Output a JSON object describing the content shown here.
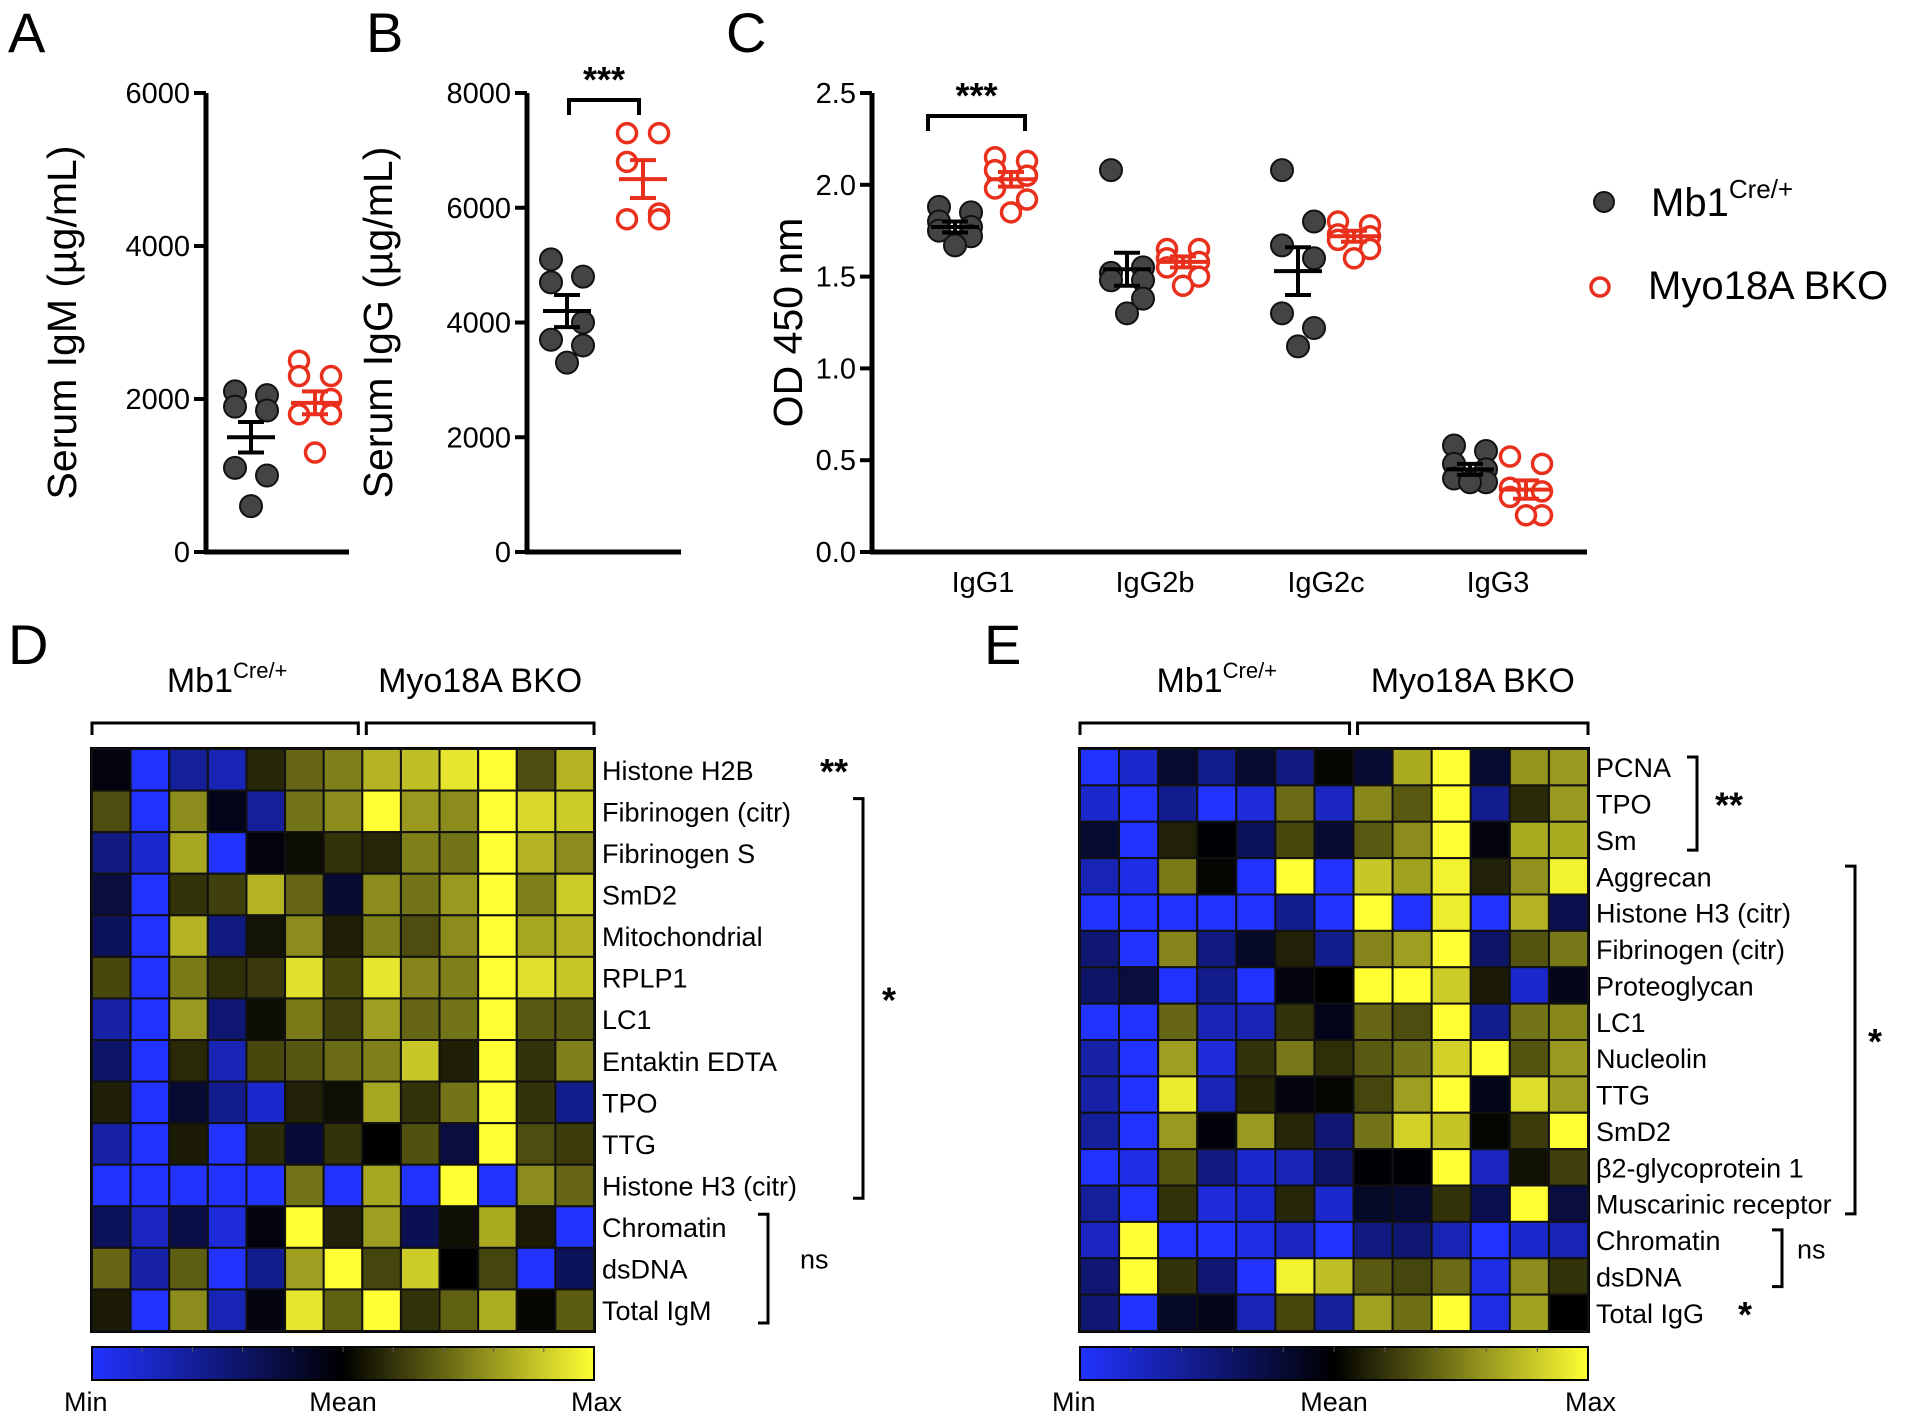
{
  "panel_letters": [
    "A",
    "B",
    "C",
    "D",
    "E"
  ],
  "colors": {
    "control": "#444444",
    "ko": "#e8301c",
    "min": "#2233ff",
    "mean": "#000000",
    "max": "#ffff33"
  },
  "legend": {
    "control": {
      "base": "Mb1",
      "sup": "Cre/+"
    },
    "ko": {
      "label": "Myo18A BKO"
    }
  },
  "chart_data": [
    {
      "id": "A",
      "type": "scatter",
      "ylabel": "Serum IgM (µg/mL)",
      "ylim": [
        0,
        6000
      ],
      "yticks": [
        "0",
        "2000",
        "4000",
        "6000"
      ],
      "groups": [
        {
          "name": "Mb1Cre/+",
          "values": [
            2100,
            2050,
            1900,
            1850,
            1100,
            1000,
            600
          ],
          "mean": 1500,
          "sem": 200
        },
        {
          "name": "Myo18A BKO",
          "values": [
            2500,
            2300,
            2300,
            2000,
            1800,
            1800,
            1300
          ],
          "mean": 1950,
          "sem": 150
        }
      ],
      "significance": ""
    },
    {
      "id": "B",
      "type": "scatter",
      "ylabel": "Serum IgG (µg/mL)",
      "ylim": [
        0,
        8000
      ],
      "yticks": [
        "0",
        "2000",
        "4000",
        "6000",
        "8000"
      ],
      "groups": [
        {
          "name": "Mb1Cre/+",
          "values": [
            5100,
            4800,
            4700,
            4000,
            3700,
            3600,
            3300
          ],
          "mean": 4200,
          "sem": 280
        },
        {
          "name": "Myo18A BKO",
          "values": [
            7300,
            7300,
            6800,
            5900,
            5800,
            5800
          ],
          "mean": 6500,
          "sem": 330
        }
      ],
      "significance": "***"
    },
    {
      "id": "C",
      "type": "scatter",
      "ylabel": "OD 450 nm",
      "ylim": [
        0,
        2.5
      ],
      "yticks": [
        "0.0",
        "0.5",
        "1.0",
        "1.5",
        "2.0",
        "2.5"
      ],
      "categories": [
        "IgG1",
        "IgG2b",
        "IgG2c",
        "IgG3"
      ],
      "series": [
        {
          "name": "Mb1Cre/+",
          "values": [
            [
              1.88,
              1.85,
              1.8,
              1.77,
              1.75,
              1.72,
              1.67
            ],
            [
              2.08,
              1.55,
              1.52,
              1.48,
              1.48,
              1.38,
              1.3
            ],
            [
              2.08,
              1.8,
              1.67,
              1.6,
              1.3,
              1.22,
              1.12
            ],
            [
              0.58,
              0.55,
              0.48,
              0.45,
              0.4,
              0.38,
              0.38
            ]
          ],
          "mean": [
            1.77,
            1.54,
            1.53,
            0.45
          ],
          "sem": [
            0.03,
            0.09,
            0.13,
            0.03
          ]
        },
        {
          "name": "Myo18A BKO",
          "values": [
            [
              2.15,
              2.13,
              2.08,
              2.05,
              1.98,
              1.92,
              1.85
            ],
            [
              1.65,
              1.65,
              1.6,
              1.58,
              1.55,
              1.5,
              1.45
            ],
            [
              1.8,
              1.78,
              1.73,
              1.72,
              1.7,
              1.65,
              1.6
            ],
            [
              0.52,
              0.48,
              0.35,
              0.33,
              0.3,
              0.2,
              0.2
            ]
          ],
          "mean": [
            2.03,
            1.58,
            1.72,
            0.34
          ],
          "sem": [
            0.04,
            0.03,
            0.03,
            0.05
          ]
        }
      ],
      "significance": "***"
    },
    {
      "id": "D",
      "type": "heatmap",
      "scale": [
        -1,
        1
      ],
      "colorbar_labels": [
        "Min",
        "Mean",
        "Max"
      ],
      "column_groups": [
        {
          "base": "Mb1",
          "sup": "Cre/+",
          "columns": 7
        },
        {
          "label": "Myo18A BKO",
          "columns": 6
        }
      ],
      "rows": [
        "Histone H2B",
        "Fibrinogen (citr)",
        "Fibrinogen S",
        "SmD2",
        "Mitochondrial",
        "RPLP1",
        "LC1",
        "Entaktin EDTA",
        "TPO",
        "TTG",
        "Histone H3 (citr)",
        "Chromatin",
        "dsDNA",
        "Total IgM"
      ],
      "values": [
        [
          -0.05,
          -1,
          -0.6,
          -0.7,
          0.15,
          0.4,
          0.5,
          0.7,
          0.75,
          0.9,
          1,
          0.3,
          0.7
        ],
        [
          0.3,
          -1,
          0.55,
          -0.1,
          -0.6,
          0.45,
          0.55,
          1,
          0.6,
          0.55,
          1,
          0.85,
          0.8
        ],
        [
          -0.5,
          -0.8,
          0.65,
          -1,
          -0.05,
          0.05,
          0.2,
          0.15,
          0.5,
          0.45,
          1,
          0.7,
          0.55
        ],
        [
          -0.25,
          -1,
          0.2,
          0.25,
          0.7,
          0.4,
          -0.2,
          0.55,
          0.45,
          0.6,
          1,
          0.5,
          0.8
        ],
        [
          -0.35,
          -1,
          0.7,
          -0.5,
          0.08,
          0.55,
          0.12,
          0.5,
          0.3,
          0.55,
          1,
          0.65,
          0.7
        ],
        [
          0.28,
          -1,
          0.48,
          0.18,
          0.22,
          0.88,
          0.28,
          0.9,
          0.52,
          0.5,
          1,
          0.88,
          0.78
        ],
        [
          -0.65,
          -1,
          0.6,
          -0.45,
          0.05,
          0.48,
          0.25,
          0.62,
          0.4,
          0.45,
          1,
          0.35,
          0.35
        ],
        [
          -0.4,
          -1,
          0.16,
          -0.7,
          0.28,
          0.34,
          0.42,
          0.5,
          0.78,
          0.12,
          1,
          0.2,
          0.5
        ],
        [
          0.12,
          -1,
          -0.2,
          -0.55,
          -0.8,
          0.13,
          0.06,
          0.65,
          0.2,
          0.45,
          1,
          0.2,
          -0.55
        ],
        [
          -0.65,
          -1,
          0.1,
          -1,
          0.17,
          -0.22,
          0.2,
          0.0,
          0.32,
          -0.25,
          1,
          0.3,
          0.24
        ],
        [
          -1,
          -1,
          -1,
          -1,
          -1,
          0.45,
          -1,
          0.65,
          -1,
          1,
          -1,
          0.55,
          0.4
        ],
        [
          -0.35,
          -0.75,
          -0.28,
          -0.85,
          -0.05,
          1,
          0.13,
          0.62,
          -0.32,
          0.06,
          0.67,
          0.1,
          -1
        ],
        [
          0.4,
          -0.65,
          0.37,
          -1,
          -0.55,
          0.62,
          1,
          0.27,
          0.8,
          0.0,
          0.27,
          -1,
          -0.35
        ],
        [
          0.1,
          -1,
          0.55,
          -0.7,
          -0.05,
          0.9,
          0.38,
          1,
          0.2,
          0.38,
          0.68,
          0.02,
          0.36
        ]
      ],
      "significance": [
        {
          "rows": [
            0,
            0
          ],
          "label": "**"
        },
        {
          "rows": [
            1,
            10
          ],
          "label": "*"
        },
        {
          "rows": [
            11,
            13
          ],
          "label": "ns"
        }
      ]
    },
    {
      "id": "E",
      "type": "heatmap",
      "scale": [
        -1,
        1
      ],
      "colorbar_labels": [
        "Min",
        "Mean",
        "Max"
      ],
      "column_groups": [
        {
          "base": "Mb1",
          "sup": "Cre/+",
          "columns": 7
        },
        {
          "label": "Myo18A BKO",
          "columns": 6
        }
      ],
      "rows": [
        "PCNA",
        "TPO",
        "Sm",
        "Aggrecan",
        "Histone H3 (citr)",
        "Fibrinogen (citr)",
        "Proteoglycan",
        "LC1",
        "Nucleolin",
        "TTG",
        "SmD2",
        "β2-glycoprotein 1",
        "Muscarinic receptor",
        "Chromatin",
        "dsDNA",
        "Total IgG"
      ],
      "values": [
        [
          -1,
          -0.8,
          -0.2,
          -0.55,
          -0.2,
          -0.5,
          0.02,
          -0.2,
          0.67,
          1,
          -0.2,
          0.58,
          0.6
        ],
        [
          -0.8,
          -1,
          -0.55,
          -1,
          -0.85,
          0.42,
          -0.75,
          0.53,
          0.35,
          1,
          -0.55,
          0.17,
          0.6
        ],
        [
          -0.2,
          -1,
          0.13,
          -0.02,
          -0.35,
          0.28,
          -0.2,
          0.35,
          0.55,
          1,
          -0.05,
          0.67,
          0.67
        ],
        [
          -0.7,
          -0.9,
          0.48,
          0.02,
          -1,
          1,
          -1,
          0.78,
          0.63,
          0.95,
          0.13,
          0.57,
          0.95
        ],
        [
          -1,
          -1,
          -1,
          -1,
          -1,
          -0.55,
          -1,
          1,
          -1,
          0.93,
          -1,
          0.7,
          -0.3
        ],
        [
          -0.45,
          -1,
          0.52,
          -0.5,
          -0.15,
          0.13,
          -0.55,
          0.52,
          0.62,
          1,
          -0.4,
          0.33,
          0.47
        ],
        [
          -0.4,
          -0.25,
          -1,
          -0.55,
          -1,
          -0.05,
          0.0,
          1,
          1,
          0.8,
          0.1,
          -0.8,
          -0.1
        ],
        [
          -1,
          -1,
          0.4,
          -0.7,
          -0.7,
          0.2,
          -0.1,
          0.4,
          0.3,
          1,
          -0.55,
          0.45,
          0.53
        ],
        [
          -0.65,
          -1,
          0.62,
          -0.85,
          0.2,
          0.47,
          0.18,
          0.35,
          0.45,
          0.82,
          1,
          0.33,
          0.6
        ],
        [
          -0.65,
          -1,
          0.92,
          -0.7,
          0.14,
          -0.05,
          0.02,
          0.27,
          0.62,
          1,
          -0.1,
          0.87,
          0.62
        ],
        [
          -0.6,
          -1,
          0.6,
          -0.04,
          0.6,
          0.15,
          -0.45,
          0.45,
          0.82,
          0.77,
          0.02,
          0.23,
          1
        ],
        [
          -1,
          -0.9,
          0.33,
          -0.5,
          -0.8,
          -0.7,
          -0.4,
          -0.02,
          -0.02,
          1,
          -0.75,
          0.07,
          0.25
        ],
        [
          -0.6,
          -1,
          0.2,
          -0.85,
          -0.8,
          0.15,
          -0.8,
          -0.15,
          -0.2,
          0.2,
          -0.3,
          1,
          -0.25
        ],
        [
          -0.75,
          1,
          -1,
          -1,
          -0.9,
          -0.75,
          -1,
          -0.5,
          -0.45,
          -0.7,
          -1,
          -0.8,
          -0.7
        ],
        [
          -0.45,
          1,
          0.2,
          -0.45,
          -1,
          0.95,
          0.75,
          0.35,
          0.27,
          0.42,
          -0.9,
          0.55,
          0.2
        ],
        [
          -0.45,
          -1,
          -0.15,
          -0.1,
          -0.7,
          0.28,
          -0.6,
          0.63,
          0.43,
          1,
          -0.9,
          0.63,
          0.0
        ]
      ],
      "significance": [
        {
          "rows": [
            0,
            2
          ],
          "label": "**"
        },
        {
          "rows": [
            3,
            12
          ],
          "label": "*"
        },
        {
          "rows": [
            13,
            14
          ],
          "label": "ns"
        },
        {
          "rows": [
            15,
            15
          ],
          "label": "*"
        }
      ]
    }
  ]
}
